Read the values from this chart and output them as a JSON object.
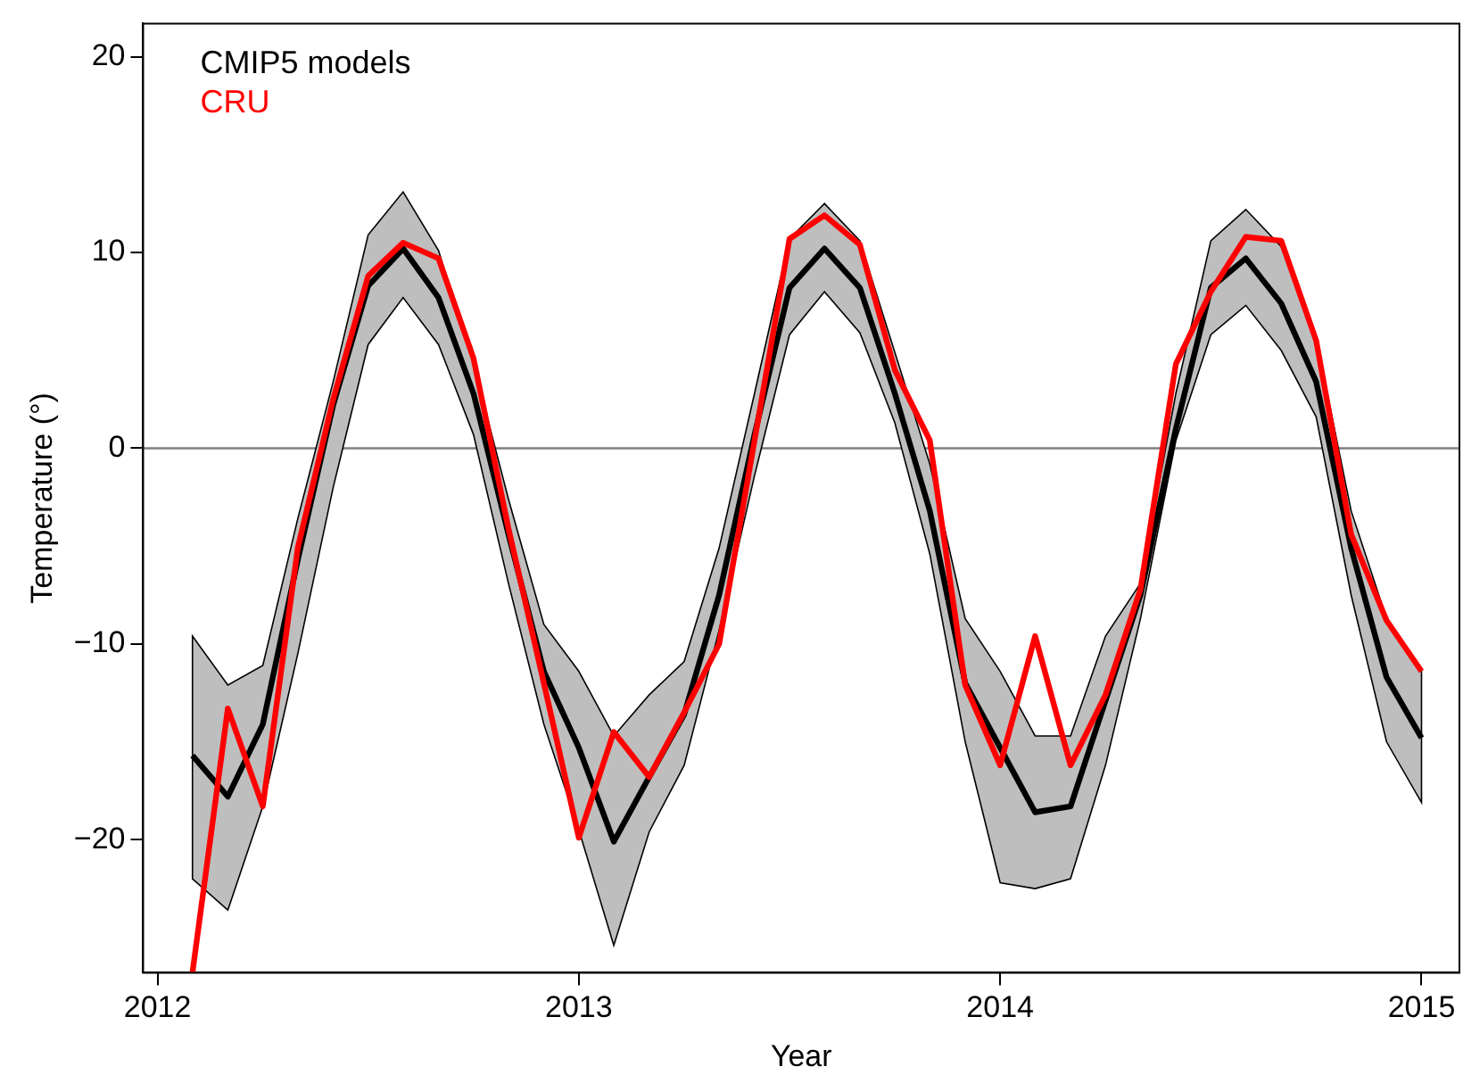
{
  "chart_data": {
    "type": "line",
    "xlabel": "Year",
    "ylabel": "Temperature (°)",
    "x": [
      2012.083,
      2012.167,
      2012.25,
      2012.333,
      2012.417,
      2012.5,
      2012.583,
      2012.667,
      2012.75,
      2012.833,
      2012.917,
      2013.0,
      2013.083,
      2013.167,
      2013.25,
      2013.333,
      2013.417,
      2013.5,
      2013.583,
      2013.667,
      2013.75,
      2013.833,
      2013.917,
      2014.0,
      2014.083,
      2014.167,
      2014.25,
      2014.333,
      2014.417,
      2014.5,
      2014.583,
      2014.667,
      2014.75,
      2014.833,
      2014.917,
      2015.0
    ],
    "series": [
      {
        "name": "CMIP5 models",
        "color": "#000000",
        "values": [
          -15.7,
          -17.8,
          -14.1,
          -5.7,
          2.2,
          8.3,
          10.2,
          7.7,
          2.8,
          -4.4,
          -11.4,
          -15.3,
          -20.1,
          -16.8,
          -13.6,
          -7.5,
          0.7,
          8.2,
          10.2,
          8.2,
          2.8,
          -3.2,
          -12.0,
          -15.3,
          -18.6,
          -18.3,
          -12.9,
          -7.5,
          1.0,
          8.2,
          9.7,
          7.4,
          3.4,
          -5.1,
          -11.7,
          -14.8
        ],
        "lower": [
          -22.0,
          -23.6,
          -18.3,
          -10.5,
          -2.0,
          5.3,
          7.7,
          5.3,
          0.7,
          -6.9,
          -14.1,
          -19.5,
          -25.4,
          -19.6,
          -16.2,
          -9.3,
          -1.4,
          5.8,
          8.0,
          5.9,
          1.3,
          -5.4,
          -15.0,
          -22.2,
          -22.5,
          -22.0,
          -16.2,
          -8.7,
          0.4,
          5.8,
          7.3,
          5.0,
          1.6,
          -7.5,
          -15.0,
          -18.1
        ],
        "upper": [
          -9.6,
          -12.1,
          -11.1,
          -3.6,
          3.4,
          10.9,
          13.1,
          10.1,
          4.3,
          -2.6,
          -9.0,
          -11.4,
          -14.7,
          -12.6,
          -10.9,
          -5.1,
          2.8,
          10.7,
          12.5,
          10.6,
          4.9,
          -0.8,
          -8.7,
          -11.4,
          -14.7,
          -14.7,
          -9.6,
          -6.9,
          2.8,
          10.6,
          12.2,
          10.3,
          5.6,
          -3.2,
          -8.7,
          -11.4
        ]
      },
      {
        "name": "CRU",
        "color": "#ff0000",
        "values": [
          -26.8,
          -13.3,
          -18.3,
          -5.1,
          2.5,
          8.8,
          10.5,
          9.7,
          4.6,
          -4.1,
          -12.0,
          -19.9,
          -14.5,
          -16.8,
          -13.5,
          -10.0,
          0.4,
          10.7,
          11.9,
          10.4,
          4.0,
          0.4,
          -12.1,
          -16.2,
          -9.6,
          -16.2,
          -12.6,
          -7.2,
          4.3,
          8.0,
          10.8,
          10.6,
          5.5,
          -4.4,
          -8.8,
          -11.4
        ]
      }
    ],
    "xlim": [
      2011.966,
      2015.09
    ],
    "xticks": [
      2012,
      2013,
      2014,
      2015
    ],
    "ylim": [
      -26.8,
      21.7
    ],
    "yticks": [
      -20,
      -10,
      0,
      10,
      20
    ],
    "ref_lines": [
      {
        "axis": "y",
        "value": 0,
        "color": "#7f7f7f"
      }
    ],
    "legend": "top left",
    "grid": false,
    "marker": "none",
    "line_style": "solid"
  }
}
